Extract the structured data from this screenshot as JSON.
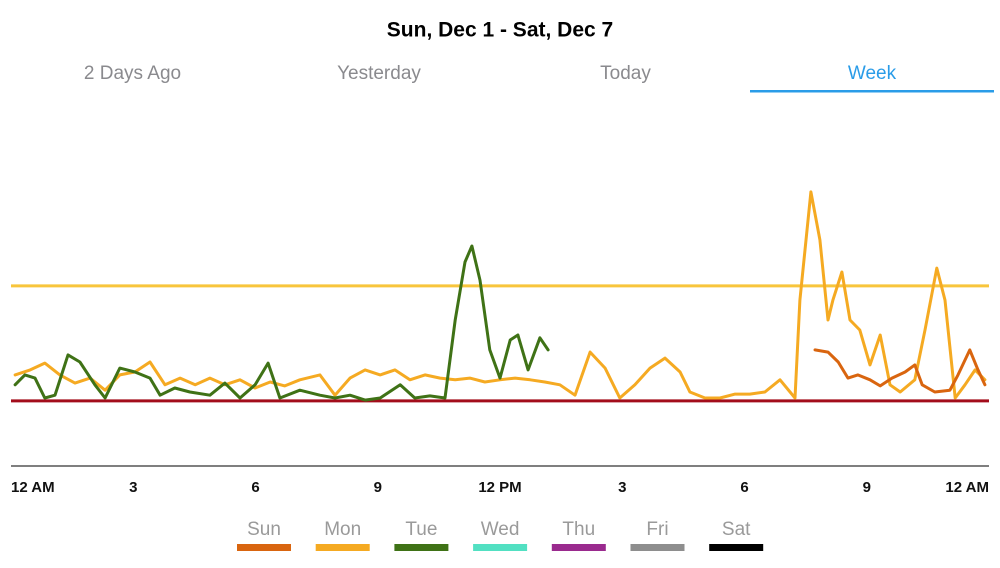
{
  "header": {
    "title": "Sun, Dec 1 - Sat, Dec 7"
  },
  "tabs": {
    "items": [
      "2 Days Ago",
      "Yesterday",
      "Today",
      "Week"
    ],
    "active": 3
  },
  "chart_data": {
    "type": "line",
    "xlim": [
      0,
      24
    ],
    "ylim": [
      0,
      100
    ],
    "xticks": [
      {
        "value": 0,
        "label": "12 AM"
      },
      3,
      6,
      9,
      {
        "value": 12,
        "label": "12 PM"
      },
      {
        "value": 15,
        "label": "3"
      },
      {
        "value": 18,
        "label": "6"
      },
      {
        "value": 21,
        "label": "9"
      },
      {
        "value": 24,
        "label": "12 AM"
      }
    ],
    "reference_lines": [
      {
        "value": 50.6,
        "color": "#f8c53c"
      },
      {
        "value": 18.3,
        "color": "#a30d1b"
      }
    ],
    "series": [
      {
        "name": "Sun",
        "color": "#d9650f",
        "x": [
          19.73,
          20.05,
          20.3,
          20.54,
          20.78,
          21.08,
          21.33,
          21.62,
          21.94,
          22.18,
          22.36,
          22.67,
          23.04,
          23.24,
          23.53,
          23.73,
          23.9
        ],
        "values": [
          32.6,
          32.0,
          29.2,
          24.7,
          25.6,
          24.2,
          22.5,
          24.7,
          26.4,
          28.4,
          22.8,
          20.8,
          21.3,
          25.6,
          32.6,
          27.0,
          22.8
        ]
      },
      {
        "name": "Mon",
        "color": "#f5aa22",
        "x": [
          0.1,
          0.47,
          0.83,
          1.2,
          1.57,
          1.94,
          2.31,
          2.67,
          3.04,
          3.41,
          3.78,
          4.15,
          4.52,
          4.88,
          5.25,
          5.62,
          5.99,
          6.36,
          6.72,
          7.09,
          7.58,
          7.95,
          8.32,
          8.69,
          9.06,
          9.42,
          9.79,
          10.16,
          10.53,
          10.9,
          11.26,
          11.63,
          12.0,
          12.37,
          12.74,
          13.1,
          13.47,
          13.84,
          14.21,
          14.58,
          14.94,
          15.31,
          15.68,
          16.05,
          16.42,
          16.66,
          17.03,
          17.4,
          17.77,
          18.13,
          18.5,
          18.87,
          19.24,
          19.36,
          19.63,
          19.85,
          20.05,
          20.17,
          20.39,
          20.59,
          20.83,
          21.08,
          21.33,
          21.57,
          21.82,
          22.18,
          22.43,
          22.72,
          22.92,
          23.17,
          23.41,
          23.66,
          23.9
        ],
        "values": [
          25.6,
          27.0,
          28.9,
          25.6,
          23.3,
          24.7,
          21.3,
          25.6,
          26.4,
          29.2,
          22.8,
          24.7,
          22.8,
          24.7,
          22.8,
          24.2,
          21.9,
          23.6,
          22.5,
          24.2,
          25.6,
          19.9,
          24.7,
          27.0,
          25.6,
          27.0,
          24.2,
          25.6,
          24.7,
          24.2,
          24.7,
          23.6,
          24.2,
          24.7,
          24.2,
          23.6,
          22.8,
          19.9,
          32.0,
          27.5,
          19.1,
          22.8,
          27.5,
          30.3,
          26.4,
          20.8,
          19.1,
          19.1,
          20.2,
          20.2,
          20.8,
          24.2,
          19.1,
          46.6,
          77.0,
          63.5,
          41.0,
          46.6,
          54.5,
          41.0,
          38.2,
          28.4,
          36.8,
          22.8,
          20.8,
          24.2,
          38.2,
          55.6,
          46.6,
          19.1,
          22.8,
          27.0,
          24.2
        ]
      },
      {
        "name": "Tue",
        "color": "#3f7216",
        "x": [
          0.1,
          0.34,
          0.59,
          0.83,
          1.08,
          1.4,
          1.69,
          2.06,
          2.31,
          2.67,
          3.04,
          3.41,
          3.66,
          4.02,
          4.39,
          4.88,
          5.25,
          5.62,
          5.99,
          6.31,
          6.6,
          7.09,
          7.58,
          7.95,
          8.32,
          8.69,
          9.06,
          9.55,
          9.91,
          10.28,
          10.65,
          10.9,
          11.14,
          11.31,
          11.51,
          11.75,
          12.0,
          12.25,
          12.44,
          12.69,
          12.98,
          13.18
        ],
        "values": [
          22.8,
          25.6,
          24.7,
          19.1,
          19.9,
          31.2,
          29.2,
          22.8,
          19.1,
          27.5,
          26.4,
          24.7,
          19.9,
          21.9,
          20.8,
          19.9,
          23.3,
          19.1,
          22.8,
          28.9,
          19.1,
          21.3,
          19.9,
          19.1,
          19.9,
          18.5,
          19.1,
          22.8,
          19.1,
          19.7,
          19.1,
          41.0,
          57.3,
          61.8,
          52.2,
          32.6,
          24.7,
          35.4,
          36.8,
          27.0,
          36.0,
          32.6
        ]
      },
      {
        "name": "Wed",
        "color": "#52e0c2",
        "x": [],
        "values": []
      },
      {
        "name": "Thu",
        "color": "#9a2a8e",
        "x": [],
        "values": []
      },
      {
        "name": "Fri",
        "color": "#8e8e8e",
        "x": [],
        "values": []
      },
      {
        "name": "Sat",
        "color": "#000000",
        "x": [],
        "values": []
      }
    ]
  }
}
